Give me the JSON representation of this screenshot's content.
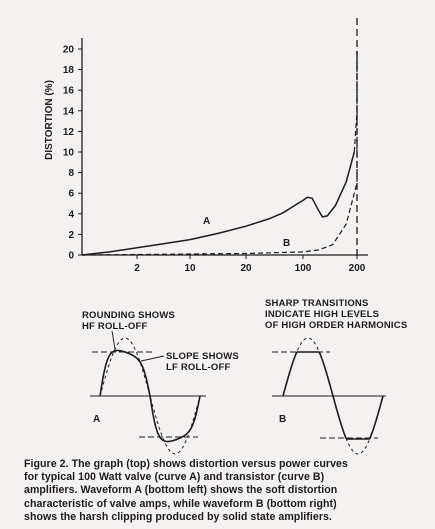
{
  "chart_data": [
    {
      "type": "line",
      "title": "",
      "ylabel": "DISTORTION (%)",
      "xlabel": "",
      "y_ticks": [
        0,
        2,
        4,
        6,
        8,
        10,
        12,
        14,
        16,
        18,
        20
      ],
      "x_tick_labels": [
        "2",
        "10",
        "20",
        "100",
        "200"
      ],
      "ylim": [
        0,
        20
      ],
      "grid": false,
      "reference_line": {
        "x": "200",
        "style": "dashed"
      },
      "series": [
        {
          "name": "A",
          "style": "solid-then-dashed",
          "points": [
            {
              "x": 0,
              "y": 0.0
            },
            {
              "x": 0.5,
              "y": 0.3
            },
            {
              "x": 1,
              "y": 0.7
            },
            {
              "x": 1.5,
              "y": 1.1
            },
            {
              "x": 2,
              "y": 1.5
            },
            {
              "x": 2.5,
              "y": 2.1
            },
            {
              "x": 3,
              "y": 2.8
            },
            {
              "x": 3.4,
              "y": 3.5
            },
            {
              "x": 3.65,
              "y": 4.1
            },
            {
              "x": 3.85,
              "y": 4.8
            },
            {
              "x": 4.0,
              "y": 5.3
            },
            {
              "x": 4.08,
              "y": 5.6
            },
            {
              "x": 4.17,
              "y": 5.5
            },
            {
              "x": 4.27,
              "y": 4.5
            },
            {
              "x": 4.36,
              "y": 3.7
            },
            {
              "x": 4.45,
              "y": 3.8
            },
            {
              "x": 4.6,
              "y": 4.8
            },
            {
              "x": 4.8,
              "y": 7.1
            },
            {
              "x": 4.95,
              "y": 10.0
            },
            {
              "x": 5.1,
              "y": 14.0
            },
            {
              "x": 5.22,
              "y": 18.0
            },
            {
              "x": 5.28,
              "y": 19.8
            }
          ]
        },
        {
          "name": "B",
          "style": "dashed",
          "points": [
            {
              "x": 0,
              "y": 0.0
            },
            {
              "x": 1,
              "y": 0.05
            },
            {
              "x": 2,
              "y": 0.1
            },
            {
              "x": 3,
              "y": 0.15
            },
            {
              "x": 4,
              "y": 0.3
            },
            {
              "x": 4.3,
              "y": 0.5
            },
            {
              "x": 4.55,
              "y": 1.0
            },
            {
              "x": 4.8,
              "y": 3.0
            },
            {
              "x": 5.0,
              "y": 7.0
            },
            {
              "x": 5.15,
              "y": 12.0
            },
            {
              "x": 5.25,
              "y": 17.0
            },
            {
              "x": 5.3,
              "y": 19.8
            }
          ]
        }
      ]
    },
    {
      "type": "line",
      "title": "",
      "waveform": "soft-clipped sine",
      "label": "A",
      "annotations": [
        "ROUNDING SHOWS",
        "HF ROLL-OFF",
        "SLOPE SHOWS",
        "LF ROLL-OFF"
      ]
    },
    {
      "type": "line",
      "title": "",
      "waveform": "hard-clipped sine",
      "label": "B",
      "annotations": [
        "SHARP TRANSITIONS",
        "INDICATE HIGH LEVELS",
        "OF HIGH ORDER HARMONICS"
      ]
    }
  ],
  "text": {
    "curve_label_a": "A",
    "curve_label_b": "B",
    "wave_label_a": "A",
    "wave_label_b": "B",
    "ann_left_1": "ROUNDING SHOWS",
    "ann_left_2": "HF ROLL-OFF",
    "ann_slope_1": "SLOPE SHOWS",
    "ann_slope_2": "LF ROLL-OFF",
    "ann_right_1": "SHARP TRANSITIONS",
    "ann_right_2": "INDICATE HIGH LEVELS",
    "ann_right_3": "OF HIGH ORDER HARMONICS"
  },
  "caption": {
    "line1": "Figure 2. The graph (top) shows distortion versus power curves",
    "line2": "for typical 100 Watt valve (curve A) and transistor (curve B)",
    "line3": "amplifiers. Waveform A (bottom left) shows the soft distortion",
    "line4": "characteristic of valve amps, while waveform B (bottom right)",
    "line5": "shows the harsh clipping produced by solid state amplifiers."
  },
  "colors": {
    "ink": "#1d1b1b",
    "paper": "#f4f2f0"
  }
}
